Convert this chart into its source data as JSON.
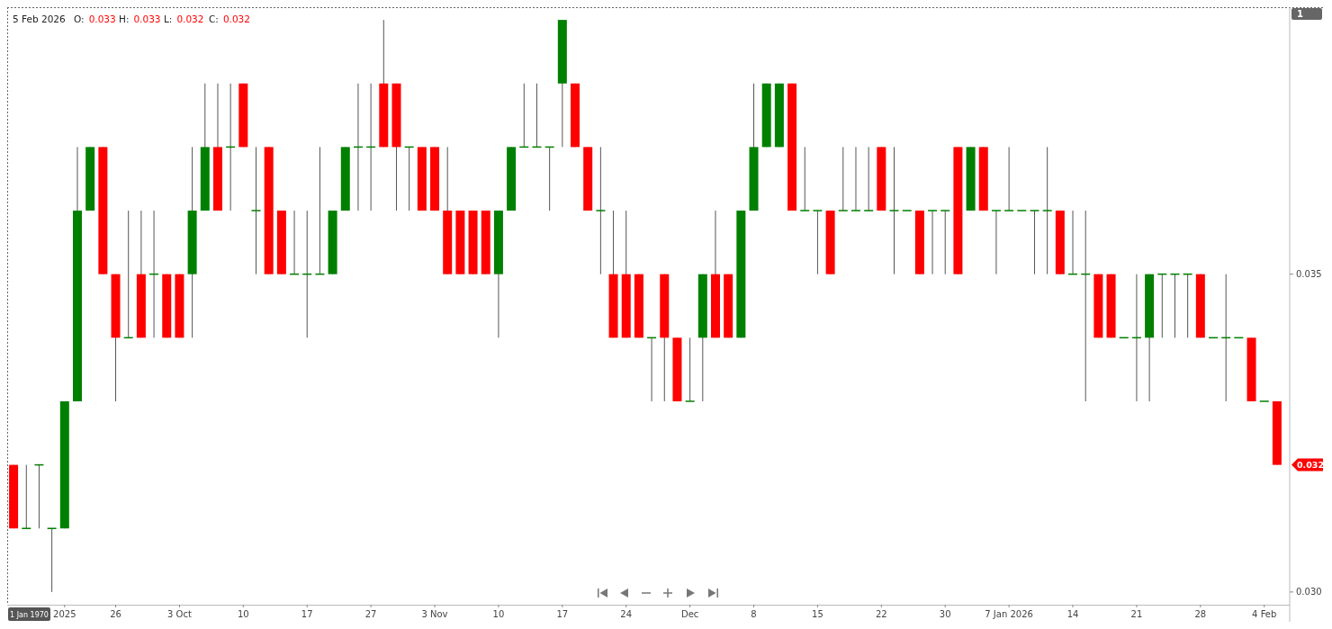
{
  "chart_data": {
    "type": "candlestick",
    "categories": [
      null,
      null,
      null,
      null,
      "2025",
      null,
      null,
      null,
      "26",
      null,
      null,
      null,
      null,
      "3 Oct",
      null,
      null,
      null,
      null,
      "10",
      null,
      null,
      null,
      null,
      "17",
      null,
      null,
      null,
      null,
      "27",
      null,
      null,
      null,
      null,
      "3 Nov",
      null,
      null,
      null,
      null,
      "10",
      null,
      null,
      null,
      null,
      "17",
      null,
      null,
      null,
      null,
      "24",
      null,
      null,
      null,
      null,
      "Dec",
      null,
      null,
      null,
      null,
      "8",
      null,
      null,
      null,
      null,
      "15",
      null,
      null,
      null,
      null,
      "22",
      null,
      null,
      null,
      null,
      "30",
      null,
      null,
      null,
      null,
      "7 Jan 2026",
      null,
      null,
      null,
      null,
      "14",
      null,
      null,
      null,
      null,
      "21",
      null,
      null,
      null,
      null,
      "28",
      null,
      null,
      null,
      null,
      "4 Feb",
      null
    ],
    "ohlc": [
      [
        0.032,
        0.032,
        0.031,
        0.031
      ],
      [
        0.031,
        0.032,
        0.031,
        0.031
      ],
      [
        0.032,
        0.032,
        0.031,
        0.032
      ],
      [
        0.031,
        0.031,
        0.03,
        0.031
      ],
      [
        0.031,
        0.033,
        0.031,
        0.033
      ],
      [
        0.033,
        0.037,
        0.033,
        0.036
      ],
      [
        0.036,
        0.037,
        0.036,
        0.037
      ],
      [
        0.037,
        0.037,
        0.035,
        0.035
      ],
      [
        0.035,
        0.035,
        0.033,
        0.034
      ],
      [
        0.034,
        0.036,
        0.034,
        0.034
      ],
      [
        0.035,
        0.036,
        0.034,
        0.034
      ],
      [
        0.035,
        0.036,
        0.034,
        0.035
      ],
      [
        0.035,
        0.035,
        0.034,
        0.034
      ],
      [
        0.035,
        0.035,
        0.034,
        0.034
      ],
      [
        0.035,
        0.037,
        0.034,
        0.036
      ],
      [
        0.036,
        0.038,
        0.036,
        0.037
      ],
      [
        0.037,
        0.038,
        0.036,
        0.036
      ],
      [
        0.037,
        0.038,
        0.036,
        0.037
      ],
      [
        0.038,
        0.038,
        0.037,
        0.037
      ],
      [
        0.036,
        0.037,
        0.035,
        0.036
      ],
      [
        0.037,
        0.037,
        0.035,
        0.035
      ],
      [
        0.036,
        0.036,
        0.035,
        0.035
      ],
      [
        0.035,
        0.036,
        0.035,
        0.035
      ],
      [
        0.035,
        0.036,
        0.034,
        0.035
      ],
      [
        0.035,
        0.037,
        0.035,
        0.035
      ],
      [
        0.035,
        0.036,
        0.035,
        0.036
      ],
      [
        0.036,
        0.037,
        0.036,
        0.037
      ],
      [
        0.037,
        0.038,
        0.036,
        0.037
      ],
      [
        0.037,
        0.038,
        0.036,
        0.037
      ],
      [
        0.038,
        0.039,
        0.037,
        0.037
      ],
      [
        0.038,
        0.038,
        0.036,
        0.037
      ],
      [
        0.037,
        0.037,
        0.036,
        0.037
      ],
      [
        0.037,
        0.037,
        0.036,
        0.036
      ],
      [
        0.037,
        0.037,
        0.036,
        0.036
      ],
      [
        0.036,
        0.037,
        0.035,
        0.035
      ],
      [
        0.036,
        0.036,
        0.035,
        0.035
      ],
      [
        0.036,
        0.036,
        0.035,
        0.035
      ],
      [
        0.036,
        0.036,
        0.035,
        0.035
      ],
      [
        0.035,
        0.036,
        0.034,
        0.036
      ],
      [
        0.036,
        0.037,
        0.036,
        0.037
      ],
      [
        0.037,
        0.038,
        0.037,
        0.037
      ],
      [
        0.037,
        0.038,
        0.037,
        0.037
      ],
      [
        0.037,
        0.037,
        0.036,
        0.037
      ],
      [
        0.038,
        0.039,
        0.037,
        0.039
      ],
      [
        0.038,
        0.038,
        0.037,
        0.037
      ],
      [
        0.037,
        0.037,
        0.036,
        0.036
      ],
      [
        0.036,
        0.037,
        0.035,
        0.036
      ],
      [
        0.035,
        0.036,
        0.034,
        0.034
      ],
      [
        0.035,
        0.036,
        0.034,
        0.034
      ],
      [
        0.035,
        0.035,
        0.034,
        0.034
      ],
      [
        0.034,
        0.034,
        0.033,
        0.034
      ],
      [
        0.035,
        0.035,
        0.033,
        0.034
      ],
      [
        0.034,
        0.034,
        0.033,
        0.033
      ],
      [
        0.033,
        0.034,
        0.033,
        0.033
      ],
      [
        0.034,
        0.035,
        0.033,
        0.035
      ],
      [
        0.035,
        0.036,
        0.034,
        0.034
      ],
      [
        0.035,
        0.035,
        0.034,
        0.034
      ],
      [
        0.034,
        0.036,
        0.034,
        0.036
      ],
      [
        0.036,
        0.038,
        0.036,
        0.037
      ],
      [
        0.037,
        0.038,
        0.037,
        0.038
      ],
      [
        0.037,
        0.038,
        0.037,
        0.038
      ],
      [
        0.038,
        0.038,
        0.036,
        0.036
      ],
      [
        0.036,
        0.037,
        0.036,
        0.036
      ],
      [
        0.036,
        0.036,
        0.035,
        0.036
      ],
      [
        0.036,
        0.036,
        0.035,
        0.035
      ],
      [
        0.036,
        0.037,
        0.036,
        0.036
      ],
      [
        0.036,
        0.037,
        0.036,
        0.036
      ],
      [
        0.036,
        0.037,
        0.036,
        0.036
      ],
      [
        0.037,
        0.037,
        0.036,
        0.036
      ],
      [
        0.036,
        0.037,
        0.035,
        0.036
      ],
      [
        0.036,
        0.036,
        0.036,
        0.036
      ],
      [
        0.036,
        0.036,
        0.035,
        0.035
      ],
      [
        0.036,
        0.036,
        0.035,
        0.036
      ],
      [
        0.036,
        0.036,
        0.035,
        0.036
      ],
      [
        0.037,
        0.037,
        0.035,
        0.035
      ],
      [
        0.036,
        0.037,
        0.036,
        0.037
      ],
      [
        0.037,
        0.037,
        0.036,
        0.036
      ],
      [
        0.036,
        0.036,
        0.035,
        0.036
      ],
      [
        0.036,
        0.037,
        0.036,
        0.036
      ],
      [
        0.036,
        0.036,
        0.036,
        0.036
      ],
      [
        0.036,
        0.036,
        0.035,
        0.036
      ],
      [
        0.036,
        0.037,
        0.035,
        0.036
      ],
      [
        0.036,
        0.036,
        0.035,
        0.035
      ],
      [
        0.035,
        0.036,
        0.035,
        0.035
      ],
      [
        0.035,
        0.036,
        0.033,
        0.035
      ],
      [
        0.035,
        0.035,
        0.034,
        0.034
      ],
      [
        0.035,
        0.035,
        0.034,
        0.034
      ],
      [
        0.034,
        0.034,
        0.034,
        0.034
      ],
      [
        0.034,
        0.035,
        0.033,
        0.034
      ],
      [
        0.034,
        0.035,
        0.033,
        0.035
      ],
      [
        0.035,
        0.035,
        0.034,
        0.035
      ],
      [
        0.035,
        0.035,
        0.034,
        0.035
      ],
      [
        0.035,
        0.035,
        0.034,
        0.035
      ],
      [
        0.035,
        0.035,
        0.034,
        0.034
      ],
      [
        0.034,
        0.034,
        0.034,
        0.034
      ],
      [
        0.034,
        0.035,
        0.033,
        0.034
      ],
      [
        0.034,
        0.034,
        0.034,
        0.034
      ],
      [
        0.034,
        0.034,
        0.033,
        0.033
      ],
      [
        0.033,
        0.033,
        0.033,
        0.033
      ],
      [
        0.033,
        0.033,
        0.032,
        0.032
      ]
    ],
    "colors": [
      "#ff0000",
      "#008000",
      "#008000",
      "#008000",
      "#008000",
      "#008000",
      "#008000",
      "#ff0000",
      "#ff0000",
      "#008000",
      "#ff0000",
      "#008000",
      "#ff0000",
      "#ff0000",
      "#008000",
      "#008000",
      "#ff0000",
      "#008000",
      "#ff0000",
      "#008000",
      "#ff0000",
      "#ff0000",
      "#008000",
      "#008000",
      "#008000",
      "#008000",
      "#008000",
      "#008000",
      "#008000",
      "#ff0000",
      "#ff0000",
      "#008000",
      "#ff0000",
      "#ff0000",
      "#ff0000",
      "#ff0000",
      "#ff0000",
      "#ff0000",
      "#008000",
      "#008000",
      "#008000",
      "#008000",
      "#008000",
      "#008000",
      "#ff0000",
      "#ff0000",
      "#008000",
      "#ff0000",
      "#ff0000",
      "#ff0000",
      "#008000",
      "#ff0000",
      "#ff0000",
      "#008000",
      "#008000",
      "#ff0000",
      "#ff0000",
      "#008000",
      "#008000",
      "#008000",
      "#008000",
      "#ff0000",
      "#008000",
      "#008000",
      "#ff0000",
      "#008000",
      "#008000",
      "#008000",
      "#ff0000",
      "#008000",
      "#008000",
      "#ff0000",
      "#008000",
      "#008000",
      "#ff0000",
      "#008000",
      "#ff0000",
      "#008000",
      "#008000",
      "#008000",
      "#008000",
      "#008000",
      "#ff0000",
      "#008000",
      "#008000",
      "#ff0000",
      "#ff0000",
      "#008000",
      "#008000",
      "#008000",
      "#008000",
      "#008000",
      "#008000",
      "#ff0000",
      "#008000",
      "#008000",
      "#008000",
      "#ff0000",
      "#008000",
      "#ff0000"
    ],
    "ylim": [
      0.0298,
      0.0392
    ],
    "yticks": [
      {
        "value": 0.03,
        "label": "0.030"
      },
      0.035
    ],
    "grid": false,
    "annotations": [
      "5 Feb 2026",
      "O: 0.033",
      "H: 0.033",
      "L: 0.032",
      "C: 0.032",
      "0.032",
      "1",
      "1 Jan 1970"
    ]
  }
}
